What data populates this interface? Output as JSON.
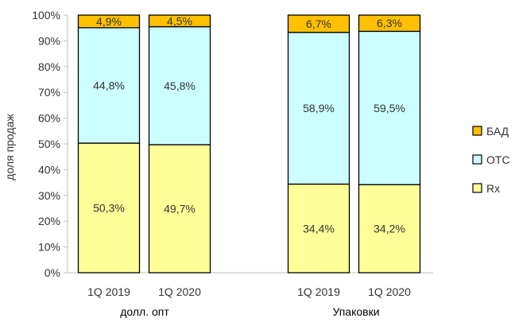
{
  "chart_data": {
    "type": "bar",
    "stacked": true,
    "percent": true,
    "ylabel": "доля продаж",
    "ylim": [
      0,
      100
    ],
    "yticks": [
      "0%",
      "10%",
      "20%",
      "30%",
      "40%",
      "50%",
      "60%",
      "70%",
      "80%",
      "90%",
      "100%"
    ],
    "groups": [
      {
        "label": "долл. опт",
        "categories": [
          "1Q 2019",
          "1Q 2020"
        ]
      },
      {
        "label": "Упаковки",
        "categories": [
          "1Q 2019",
          "1Q 2020"
        ]
      }
    ],
    "series": [
      {
        "name": "Rx",
        "color": "#ffff99",
        "values": [
          50.3,
          49.7,
          34.4,
          34.2
        ],
        "labels": [
          "50,3%",
          "49,7%",
          "34,4%",
          "34,2%"
        ]
      },
      {
        "name": "OTC",
        "color": "#ccffff",
        "values": [
          44.8,
          45.8,
          58.9,
          59.5
        ],
        "labels": [
          "44,8%",
          "45,8%",
          "58,9%",
          "59,5%"
        ]
      },
      {
        "name": "БАД",
        "color": "#ffc000",
        "values": [
          4.9,
          4.5,
          6.7,
          6.3
        ],
        "labels": [
          "4,9%",
          "4,5%",
          "6,7%",
          "6,3%"
        ]
      }
    ],
    "legend": {
      "position": "right",
      "order": [
        "БАД",
        "OTC",
        "Rx"
      ]
    },
    "grid": false
  }
}
